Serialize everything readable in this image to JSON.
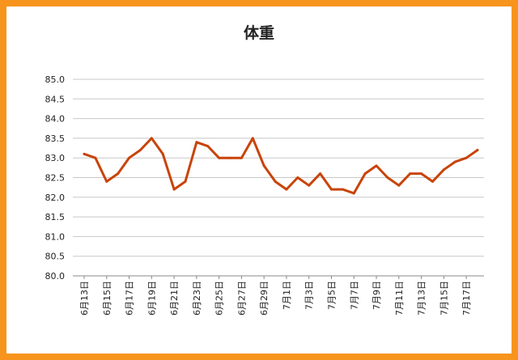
{
  "chart_data": {
    "type": "line",
    "title": "体重",
    "xlabel": "",
    "ylabel": "",
    "ylim": [
      80.0,
      85.0
    ],
    "y_ticks": [
      "80.0",
      "80.5",
      "81.0",
      "81.5",
      "82.0",
      "82.5",
      "83.0",
      "83.5",
      "84.0",
      "84.5",
      "85.0"
    ],
    "grid": true,
    "legend": "none",
    "x_tick_labels": [
      "6月13日",
      "6月15日",
      "6月17日",
      "6月19日",
      "6月21日",
      "6月23日",
      "6月25日",
      "6月27日",
      "6月29日",
      "7月1日",
      "7月3日",
      "7月5日",
      "7月7日",
      "7月9日",
      "7月11日",
      "7月13日",
      "7月15日",
      "7月17日"
    ],
    "x": [
      "6月13日",
      "6月14日",
      "6月15日",
      "6月16日",
      "6月17日",
      "6月18日",
      "6月19日",
      "6月20日",
      "6月21日",
      "6月22日",
      "6月23日",
      "6月24日",
      "6月25日",
      "6月26日",
      "6月27日",
      "6月28日",
      "6月29日",
      "6月30日",
      "7月1日",
      "7月2日",
      "7月3日",
      "7月4日",
      "7月5日",
      "7月6日",
      "7月7日",
      "7月8日",
      "7月9日",
      "7月10日",
      "7月11日",
      "7月12日",
      "7月13日",
      "7月14日",
      "7月15日",
      "7月16日",
      "7月17日",
      "7月18日"
    ],
    "series": [
      {
        "values": [
          83.1,
          83.0,
          82.4,
          82.6,
          83.0,
          83.2,
          83.5,
          83.1,
          82.2,
          82.4,
          83.4,
          83.3,
          83.0,
          83.0,
          83.0,
          83.5,
          82.8,
          82.4,
          82.2,
          82.5,
          82.3,
          82.6,
          82.2,
          82.2,
          82.1,
          82.6,
          82.8,
          82.5,
          82.3,
          82.6,
          82.6,
          82.4,
          82.7,
          82.9,
          83.0,
          83.2
        ],
        "color": "#c8440a"
      }
    ],
    "colors": {
      "line": "#c8440a",
      "grid": "#c8c8c8",
      "frame": "#f7941d"
    }
  }
}
